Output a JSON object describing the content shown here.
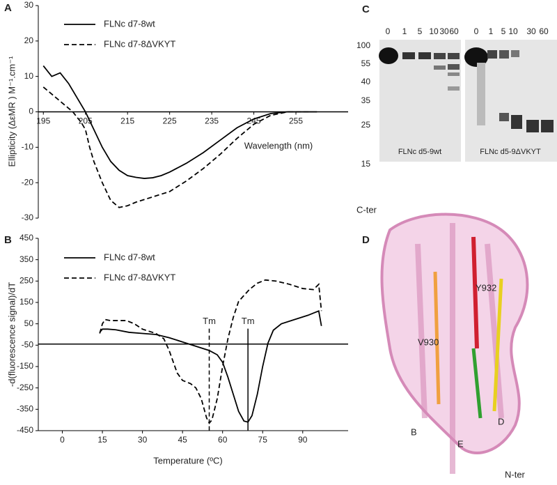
{
  "chart_data": [
    {
      "type": "line",
      "panel": "A",
      "ylabel": "Ellipticity (ΔεMR ) M⁻¹.cm⁻¹",
      "xlabel": "Wavelength  (nm)",
      "xlim": [
        193.8,
        267.4
      ],
      "ylim": [
        -30,
        30
      ],
      "xticks": [
        195,
        205,
        215,
        225,
        235,
        245,
        255
      ],
      "yticks": [
        30,
        20,
        10,
        0,
        -10,
        -20,
        -30
      ],
      "hline": 0,
      "series": [
        {
          "name": "FLNc d7-8wt",
          "color": "#000000",
          "style": "solid",
          "x": [
            195,
            197,
            199,
            201,
            203,
            205,
            207,
            209,
            211,
            213,
            215,
            217,
            219,
            221,
            223,
            225,
            229,
            233,
            237,
            241,
            245,
            249,
            253,
            260
          ],
          "values": [
            13,
            10,
            11,
            8,
            4,
            0,
            -5,
            -10,
            -14,
            -16.5,
            -18,
            -18.5,
            -18.8,
            -18.6,
            -18,
            -17,
            -14.5,
            -11.5,
            -8,
            -4.5,
            -2,
            -0.5,
            0,
            0
          ]
        },
        {
          "name": "FLNc d7-8ΔVKYT",
          "color": "#000000",
          "style": "dashed",
          "x": [
            195,
            197,
            199,
            201,
            202,
            204,
            205,
            206,
            207,
            209,
            211,
            213,
            215,
            217,
            221,
            225,
            229,
            233,
            237,
            241,
            245,
            249,
            253,
            258
          ],
          "values": [
            7,
            5,
            3,
            1,
            0,
            -3,
            -5,
            -10,
            -14,
            -20,
            -25,
            -27,
            -26.5,
            -25.5,
            -24,
            -22.5,
            -19.5,
            -16,
            -12,
            -7.5,
            -3.5,
            -1,
            0,
            0
          ]
        }
      ]
    },
    {
      "type": "line",
      "panel": "B",
      "ylabel": "-d(fluorescence signal)/dT",
      "xlabel": "Temperature  (ºC)",
      "xlim": [
        -9,
        107
      ],
      "ylim": [
        -450,
        450
      ],
      "xticks": [
        0,
        15,
        30,
        45,
        60,
        75,
        90
      ],
      "yticks": [
        450,
        350,
        250,
        150,
        50,
        -50,
        -150,
        -250,
        -350,
        -450
      ],
      "hline": -45,
      "markers": [
        {
          "label": "Tm",
          "x": 55,
          "y": 60
        },
        {
          "label": "Tm",
          "x": 69.5,
          "y": 60
        }
      ],
      "series": [
        {
          "name": "FLNc d7-8wt",
          "color": "#000000",
          "style": "solid",
          "x": [
            14,
            15,
            17,
            20,
            25,
            30,
            35,
            40,
            45,
            50,
            55,
            58,
            60,
            62,
            64,
            66,
            68,
            69.5,
            71,
            73,
            75,
            77,
            79,
            82,
            87,
            92,
            94,
            96,
            97
          ],
          "values": [
            10,
            25,
            25,
            22,
            10,
            5,
            0,
            -15,
            -35,
            -55,
            -75,
            -95,
            -130,
            -200,
            -280,
            -360,
            -405,
            -410,
            -380,
            -280,
            -150,
            -40,
            20,
            50,
            70,
            90,
            100,
            110,
            40
          ]
        },
        {
          "name": "FLNc d7-8ΔVKYT",
          "color": "#000000",
          "style": "dashed",
          "x": [
            14,
            15,
            16,
            18,
            24,
            27,
            30,
            35,
            38,
            40,
            43,
            45,
            48,
            50,
            52,
            54,
            55,
            56,
            58,
            60,
            62,
            64,
            66,
            70,
            73,
            76,
            80,
            85,
            90,
            94,
            96,
            97
          ],
          "values": [
            5,
            50,
            70,
            65,
            65,
            50,
            25,
            5,
            -20,
            -75,
            -180,
            -215,
            -230,
            -250,
            -300,
            -390,
            -415,
            -400,
            -300,
            -150,
            -20,
            80,
            155,
            210,
            240,
            255,
            250,
            235,
            215,
            210,
            235,
            110
          ]
        }
      ]
    }
  ],
  "panels": [
    "A",
    "B",
    "C",
    "D"
  ],
  "gel": {
    "lanes": [
      "0",
      "1",
      "5",
      "10",
      "30",
      "60"
    ],
    "markers": [
      "100",
      "55",
      "40",
      "35",
      "25",
      "15"
    ],
    "captions": [
      "FLNc d5-9wt",
      "FLNc d5-9ΔVKYT"
    ]
  },
  "structure": {
    "labels": [
      "C-ter",
      "Y932",
      "V930",
      "B",
      "E",
      "D",
      "N-ter"
    ]
  }
}
